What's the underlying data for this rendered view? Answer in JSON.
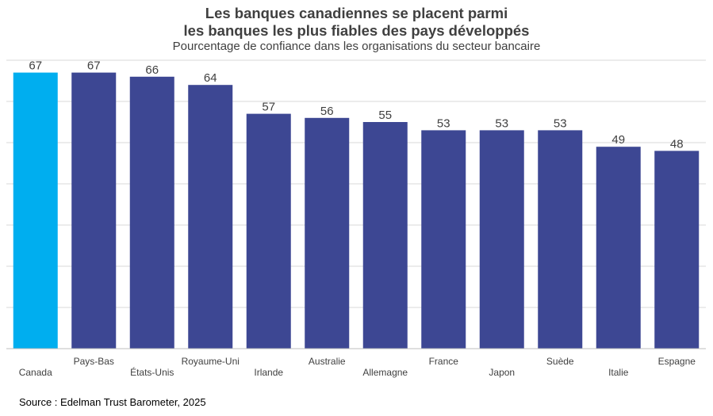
{
  "title_line1": "Les banques canadiennes se placent parmi",
  "title_line2": "les banques les plus fiables des pays développés",
  "subtitle": "Pourcentage de confiance dans les organisations du secteur bancaire",
  "source": "Source : Edelman Trust Barometer, 2025",
  "colors": {
    "highlight": "#00aeef",
    "bar": "#3d4793",
    "grid": "#d9d9d9",
    "axis": "#bfbfbf",
    "label": "#404040"
  },
  "chart_data": {
    "type": "bar",
    "categories": [
      "Canada",
      "Pays-Bas",
      "États-Unis",
      "Royaume-Uni",
      "Irlande",
      "Australie",
      "Allemagne",
      "France",
      "Japon",
      "Suède",
      "Italie",
      "Espagne"
    ],
    "values": [
      67,
      67,
      66,
      64,
      57,
      56,
      55,
      53,
      53,
      53,
      49,
      48
    ],
    "highlight_index": 0,
    "ylim": [
      0,
      70
    ],
    "grid": true,
    "xlabel": "",
    "ylabel": ""
  }
}
